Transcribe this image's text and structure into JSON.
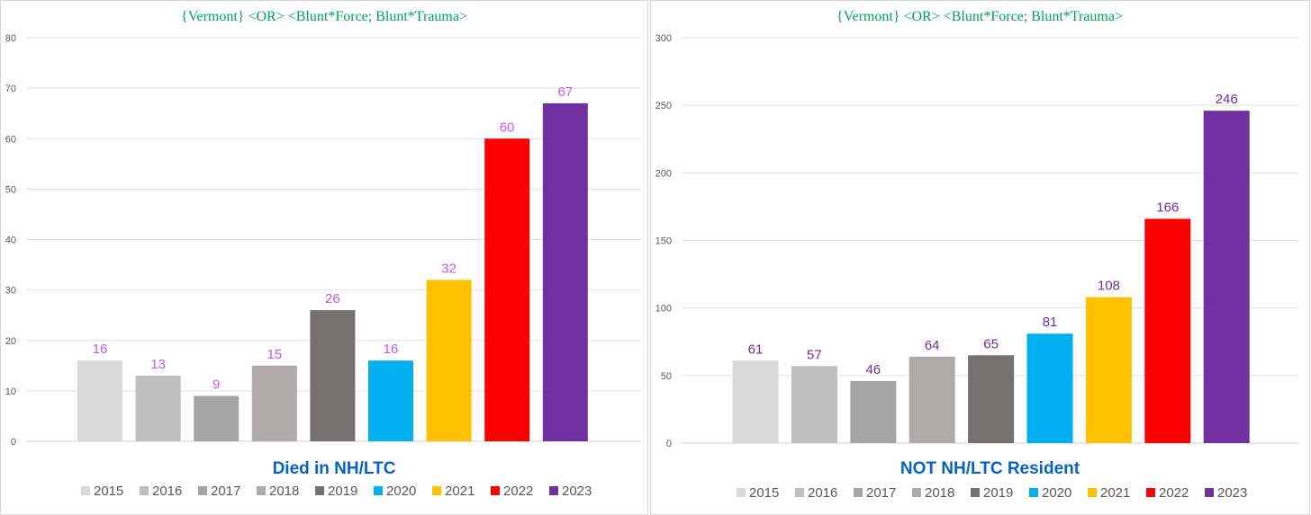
{
  "colors": {
    "2015": "#d9d9d9",
    "2016": "#bfbfbf",
    "2017": "#a5a5a5",
    "2018": "#aeaaaa",
    "2019": "#767171",
    "2020": "#00b0f0",
    "2021": "#ffc000",
    "2022": "#ff0000",
    "2023": "#7030a0"
  },
  "chart_data": [
    {
      "type": "bar",
      "title": "{Vermont}   <OR> <Blunt*Force;  Blunt*Trauma>",
      "xlabel": "Died  in NH/LTC",
      "ylabel": "",
      "categories": [
        "2015",
        "2016",
        "2017",
        "2018",
        "2019",
        "2020",
        "2021",
        "2022",
        "2023"
      ],
      "values": [
        16,
        13,
        9,
        15,
        26,
        16,
        32,
        60,
        67
      ],
      "ylim": [
        0,
        80
      ],
      "yticks": [
        0,
        10,
        20,
        30,
        40,
        50,
        60,
        70,
        80
      ],
      "grid": true,
      "legend": "bottom",
      "label_color": "#cc55ee"
    },
    {
      "type": "bar",
      "title": "{Vermont}   <OR> <Blunt*Force;  Blunt*Trauma>",
      "xlabel": "NOT NH/LTC Resident",
      "ylabel": "",
      "categories": [
        "2015",
        "2016",
        "2017",
        "2018",
        "2019",
        "2020",
        "2021",
        "2022",
        "2023"
      ],
      "values": [
        61,
        57,
        46,
        64,
        65,
        81,
        108,
        166,
        246
      ],
      "ylim": [
        0,
        300
      ],
      "yticks": [
        0,
        50,
        100,
        150,
        200,
        250,
        300
      ],
      "grid": true,
      "legend": "bottom",
      "label_color": "#7030a0"
    }
  ]
}
